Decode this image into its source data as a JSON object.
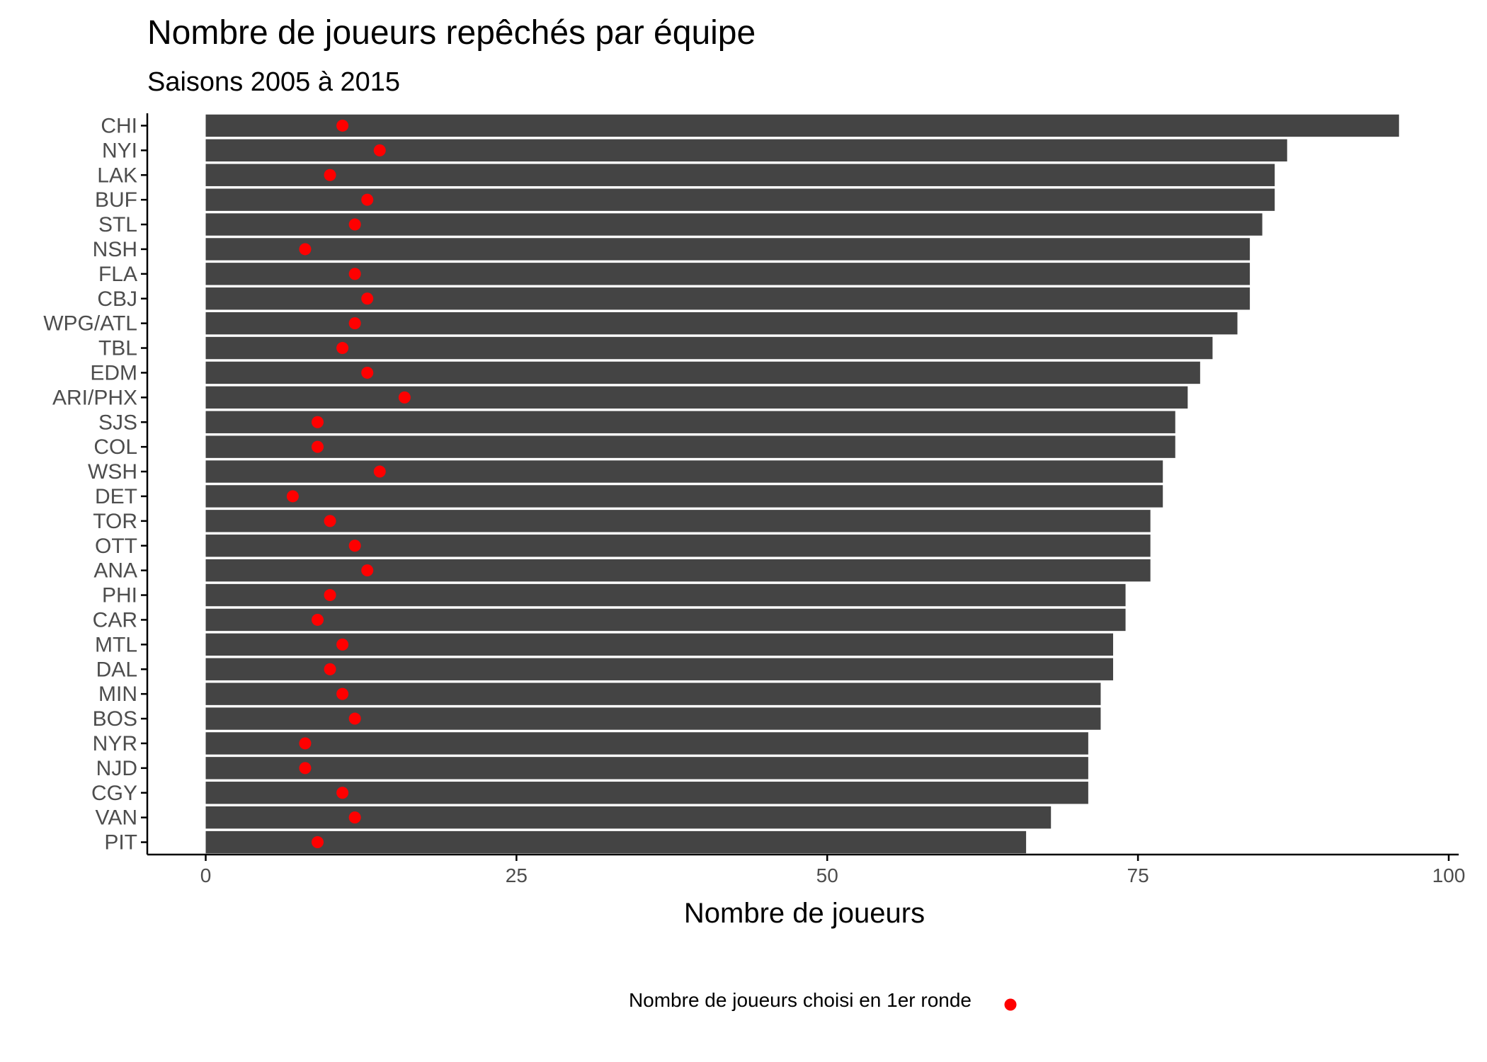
{
  "chart_data": {
    "type": "bar",
    "orientation": "horizontal",
    "title": "Nombre de joueurs repêchés par équipe",
    "subtitle": "Saisons 2005 à 2015",
    "xlabel": "Nombre de joueurs",
    "ylabel": "",
    "xlim": [
      -4.7,
      100.8
    ],
    "xticks": [
      0,
      25,
      50,
      75,
      100
    ],
    "grid": false,
    "legend_position": "bottom",
    "colors": {
      "bar": "#444444",
      "point": "#ff0000",
      "axis": "#000000",
      "tick_text": "#4d4d4d"
    },
    "categories": [
      "CHI",
      "NYI",
      "LAK",
      "BUF",
      "STL",
      "NSH",
      "FLA",
      "CBJ",
      "WPG/ATL",
      "TBL",
      "EDM",
      "ARI/PHX",
      "SJS",
      "COL",
      "WSH",
      "DET",
      "TOR",
      "OTT",
      "ANA",
      "PHI",
      "CAR",
      "MTL",
      "DAL",
      "MIN",
      "BOS",
      "NYR",
      "NJD",
      "CGY",
      "VAN",
      "PIT"
    ],
    "series": [
      {
        "kind": "bar",
        "values": [
          96,
          87,
          86,
          86,
          85,
          84,
          84,
          84,
          83,
          81,
          80,
          79,
          78,
          78,
          77,
          77,
          76,
          76,
          76,
          74,
          74,
          73,
          73,
          72,
          72,
          71,
          71,
          71,
          68,
          66
        ]
      },
      {
        "kind": "point",
        "name": "Nombre de joueurs choisi en 1er ronde",
        "values": [
          11,
          14,
          10,
          13,
          12,
          8,
          12,
          13,
          12,
          11,
          13,
          16,
          9,
          9,
          14,
          7,
          10,
          12,
          13,
          10,
          9,
          11,
          10,
          11,
          12,
          8,
          8,
          11,
          12,
          9
        ]
      }
    ]
  }
}
